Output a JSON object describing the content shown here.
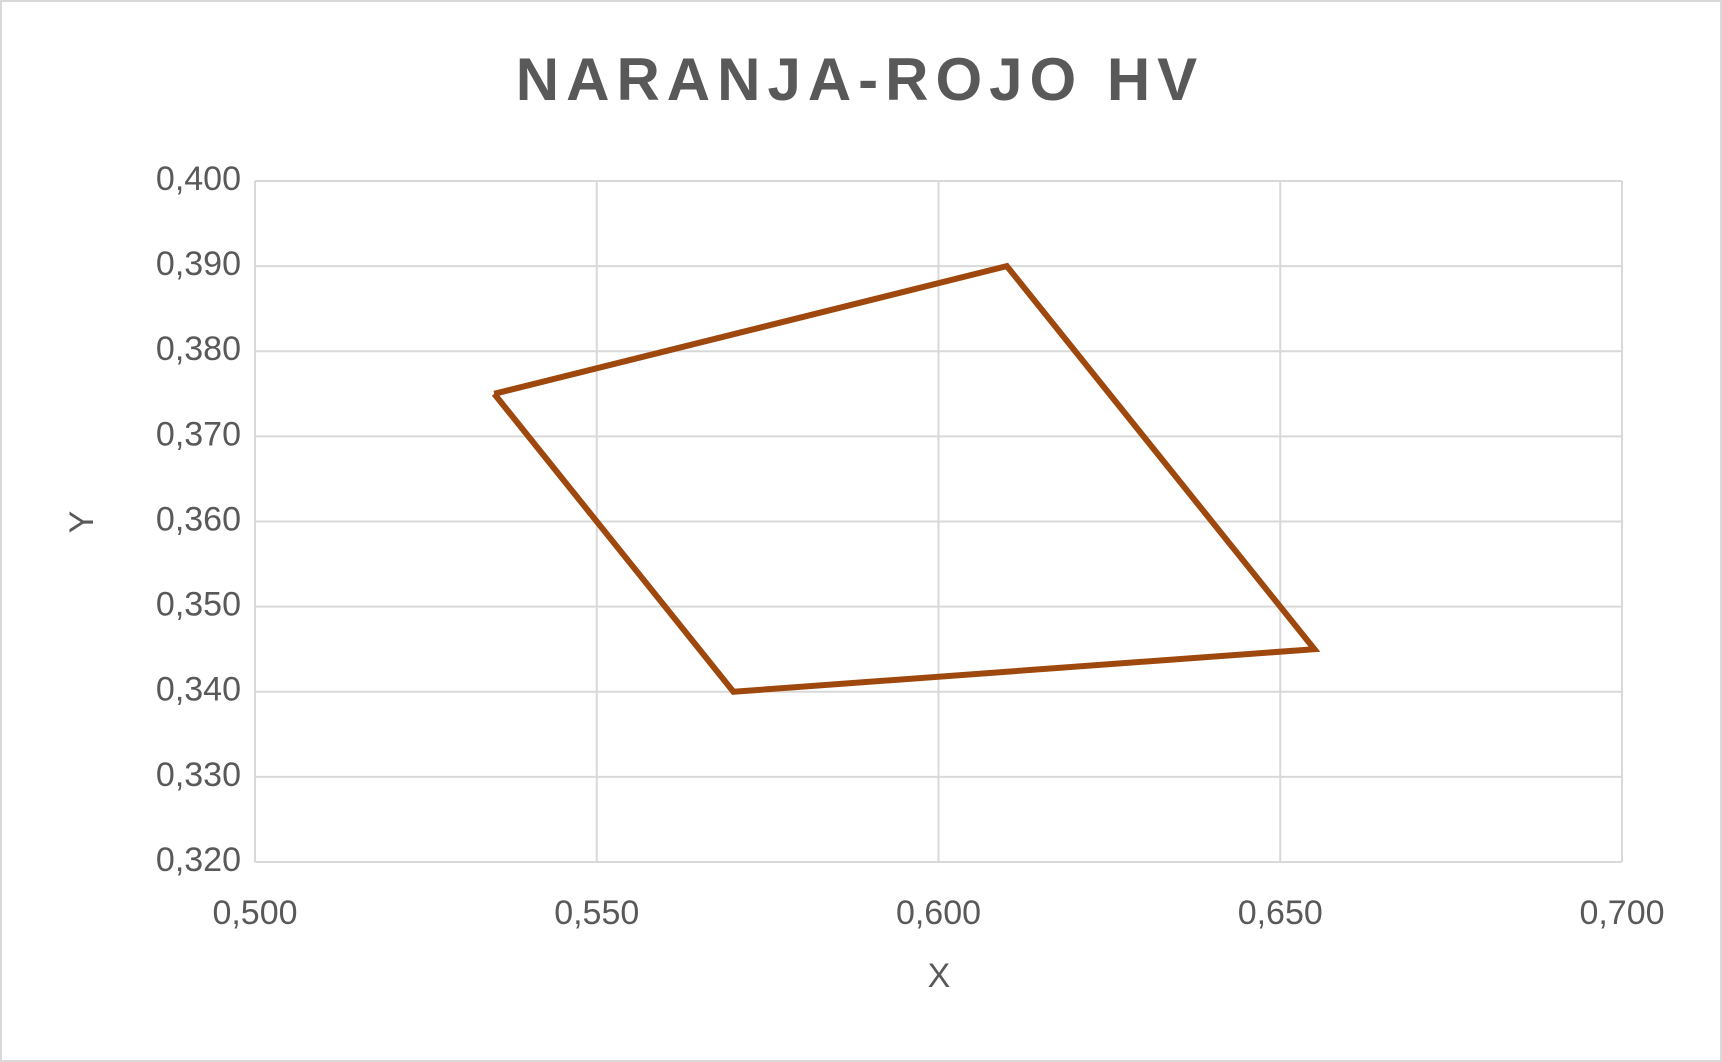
{
  "chart_data": {
    "type": "scatter",
    "title": "NARANJA-ROJO HV",
    "x_label": "X",
    "y_label": "Y",
    "series": [
      {
        "color": "#9e480e",
        "x": [
          0.535,
          0.61,
          0.655,
          0.57,
          0.535
        ],
        "values": [
          0.375,
          0.39,
          0.345,
          0.34,
          0.375
        ]
      }
    ],
    "xlim": [
      0.5,
      0.7
    ],
    "xticks": [
      {
        "value": 0.5,
        "label": "0,500"
      },
      {
        "value": 0.55,
        "label": "0,550"
      },
      {
        "value": 0.6,
        "label": "0,600"
      },
      {
        "value": 0.65,
        "label": "0,650"
      },
      {
        "value": 0.7,
        "label": "0,700"
      }
    ],
    "ylim": [
      0.32,
      0.4
    ],
    "yticks": [
      {
        "value": 0.32,
        "label": "0,320"
      },
      {
        "value": 0.33,
        "label": "0,330"
      },
      {
        "value": 0.34,
        "label": "0,340"
      },
      {
        "value": 0.35,
        "label": "0,350"
      },
      {
        "value": 0.36,
        "label": "0,360"
      },
      {
        "value": 0.37,
        "label": "0,370"
      },
      {
        "value": 0.38,
        "label": "0,380"
      },
      {
        "value": 0.39,
        "label": "0,390"
      },
      {
        "value": 0.4,
        "label": "0,400"
      }
    ],
    "grid": true
  }
}
